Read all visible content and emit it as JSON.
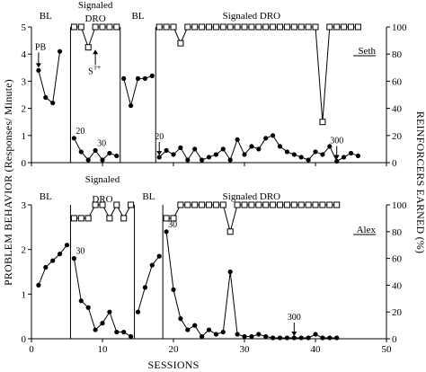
{
  "chart_data": {
    "type": "line",
    "xlabel": "SESSIONS",
    "ylabel_left": "PROBLEM BEHAVIOR (Responses/ Minute)",
    "ylabel_right": "REINFORCERS EARNED (%)",
    "x_ticks": [
      "0",
      "10",
      "20",
      "30",
      "40",
      "50"
    ],
    "xlim": [
      0,
      50
    ],
    "panels": [
      {
        "participant": "Seth",
        "ylim_left": [
          0,
          5
        ],
        "yticks_left": [
          "0",
          "1",
          "2",
          "3",
          "4",
          "5"
        ],
        "ylim_right": [
          0,
          100
        ],
        "yticks_right": [
          "0",
          "20",
          "40",
          "60",
          "80",
          "100"
        ],
        "phases": [
          {
            "label": "BL"
          },
          {
            "label_line1": "Signaled",
            "label_line2": "DRO"
          },
          {
            "label": "BL"
          },
          {
            "label": "Signaled DRO"
          }
        ],
        "phase_changes": [
          5.5,
          12.5,
          17.5
        ],
        "segments": [
          {
            "x": [
              1,
              2,
              3,
              4
            ],
            "y": [
              3.4,
              2.4,
              2.2,
              4.1
            ]
          },
          {
            "x": [
              6,
              7,
              8,
              9,
              10,
              11,
              12
            ],
            "y": [
              0.9,
              0.4,
              0.1,
              0.45,
              0.1,
              0.35,
              0.25
            ]
          },
          {
            "x": [
              13,
              14,
              15,
              16,
              17
            ],
            "y": [
              3.1,
              2.1,
              3.1,
              3.1,
              3.2
            ]
          },
          {
            "x": [
              18,
              19,
              20,
              21,
              22,
              23,
              24,
              25,
              26,
              27,
              28,
              29,
              30,
              31,
              32,
              33,
              34,
              35,
              36,
              37,
              38,
              39,
              40,
              41,
              42,
              43,
              44,
              45,
              46
            ],
            "y": [
              0.2,
              0.45,
              0.3,
              0.55,
              0.1,
              0.5,
              0.1,
              0.2,
              0.3,
              0.5,
              0.1,
              0.85,
              0.3,
              0.6,
              0.5,
              0.9,
              1.0,
              0.6,
              0.4,
              0.3,
              0.2,
              0.1,
              0.4,
              0.3,
              0.6,
              0.05,
              0.2,
              0.35,
              0.25
            ]
          }
        ],
        "reinforcer_segments": [
          {
            "x": [
              6,
              7,
              8,
              9,
              10,
              11,
              12
            ],
            "y": [
              100,
              100,
              85,
              100,
              100,
              100,
              100
            ]
          },
          {
            "x": [
              18,
              19,
              20,
              21,
              22,
              23,
              24,
              25,
              26,
              27,
              28,
              29,
              30,
              31,
              32,
              33,
              34,
              35,
              36,
              37,
              38,
              39,
              40,
              41,
              42,
              43,
              44,
              45,
              46
            ],
            "y": [
              100,
              100,
              100,
              88,
              100,
              100,
              100,
              100,
              100,
              100,
              100,
              100,
              100,
              100,
              100,
              100,
              100,
              100,
              100,
              100,
              100,
              100,
              100,
              30,
              100,
              100,
              100,
              100,
              100
            ]
          }
        ],
        "annotations": [
          {
            "text": "PB",
            "x": 1,
            "y": 3.4,
            "arrow": true
          },
          {
            "text": "S",
            "sup": "r+",
            "x": 9,
            "y": 3.6,
            "arrow": true
          },
          {
            "text": "20",
            "x": 6,
            "y": 0.9,
            "arrow": false
          },
          {
            "text": "30",
            "x": 9,
            "y": 0.45,
            "arrow": false
          },
          {
            "text": "20",
            "x": 18,
            "y": 0.2,
            "arrow": true
          },
          {
            "text": "300",
            "x": 43,
            "y": 0.05,
            "arrow": true
          }
        ]
      },
      {
        "participant": "Alex",
        "ylim_left": [
          0,
          3
        ],
        "yticks_left": [
          "0",
          "1",
          "2",
          "3"
        ],
        "ylim_right": [
          0,
          100
        ],
        "yticks_right": [
          "0",
          "20",
          "40",
          "60",
          "80",
          "100"
        ],
        "phases": [
          {
            "label": "BL"
          },
          {
            "label_line1": "Signaled",
            "label_line2": "DRO"
          },
          {
            "label": "BL"
          },
          {
            "label": "Signaled DRO"
          }
        ],
        "phase_changes": [
          5.5,
          14.5,
          18.5
        ],
        "segments": [
          {
            "x": [
              1,
              2,
              3,
              4,
              5
            ],
            "y": [
              1.2,
              1.6,
              1.75,
              1.9,
              2.1
            ]
          },
          {
            "x": [
              6,
              7,
              8,
              9,
              10,
              11,
              12,
              13,
              14
            ],
            "y": [
              1.8,
              0.85,
              0.7,
              0.2,
              0.35,
              0.6,
              0.15,
              0.15,
              0.05
            ]
          },
          {
            "x": [
              15,
              16,
              17,
              18
            ],
            "y": [
              0.6,
              1.15,
              1.65,
              1.85
            ]
          },
          {
            "x": [
              19,
              20,
              21,
              22,
              23,
              24,
              25,
              26,
              27,
              28,
              29,
              30,
              31,
              32,
              33,
              34,
              35,
              36,
              37,
              38,
              39,
              40,
              41,
              42,
              43
            ],
            "y": [
              2.4,
              1.1,
              0.45,
              0.2,
              0.3,
              0.05,
              0.2,
              0.1,
              0.15,
              1.5,
              0.1,
              0.05,
              0.05,
              0.1,
              0.05,
              0.02,
              0.02,
              0.02,
              0.02,
              0.02,
              0.02,
              0.1,
              0.02,
              0.02,
              0.02
            ]
          }
        ],
        "reinforcer_segments": [
          {
            "x": [
              6,
              7,
              8,
              9,
              10,
              11,
              12,
              13,
              14
            ],
            "y": [
              90,
              90,
              90,
              100,
              100,
              90,
              100,
              90,
              100
            ]
          },
          {
            "x": [
              19,
              20,
              21,
              22,
              23,
              24,
              25,
              26,
              27,
              28,
              29,
              30,
              31,
              32,
              33,
              34,
              35,
              36,
              37,
              38,
              39,
              40,
              41,
              42,
              43
            ],
            "y": [
              90,
              90,
              100,
              100,
              100,
              100,
              100,
              100,
              100,
              80,
              100,
              100,
              100,
              100,
              100,
              100,
              100,
              100,
              100,
              100,
              100,
              100,
              100,
              100,
              100
            ]
          }
        ],
        "annotations": [
          {
            "text": "30",
            "x": 6,
            "y": 1.8,
            "arrow": false
          },
          {
            "text": "30",
            "x": 19,
            "y": 2.4,
            "arrow": false
          },
          {
            "text": "300",
            "x": 37,
            "y": 0.02,
            "arrow": true
          }
        ]
      }
    ]
  }
}
